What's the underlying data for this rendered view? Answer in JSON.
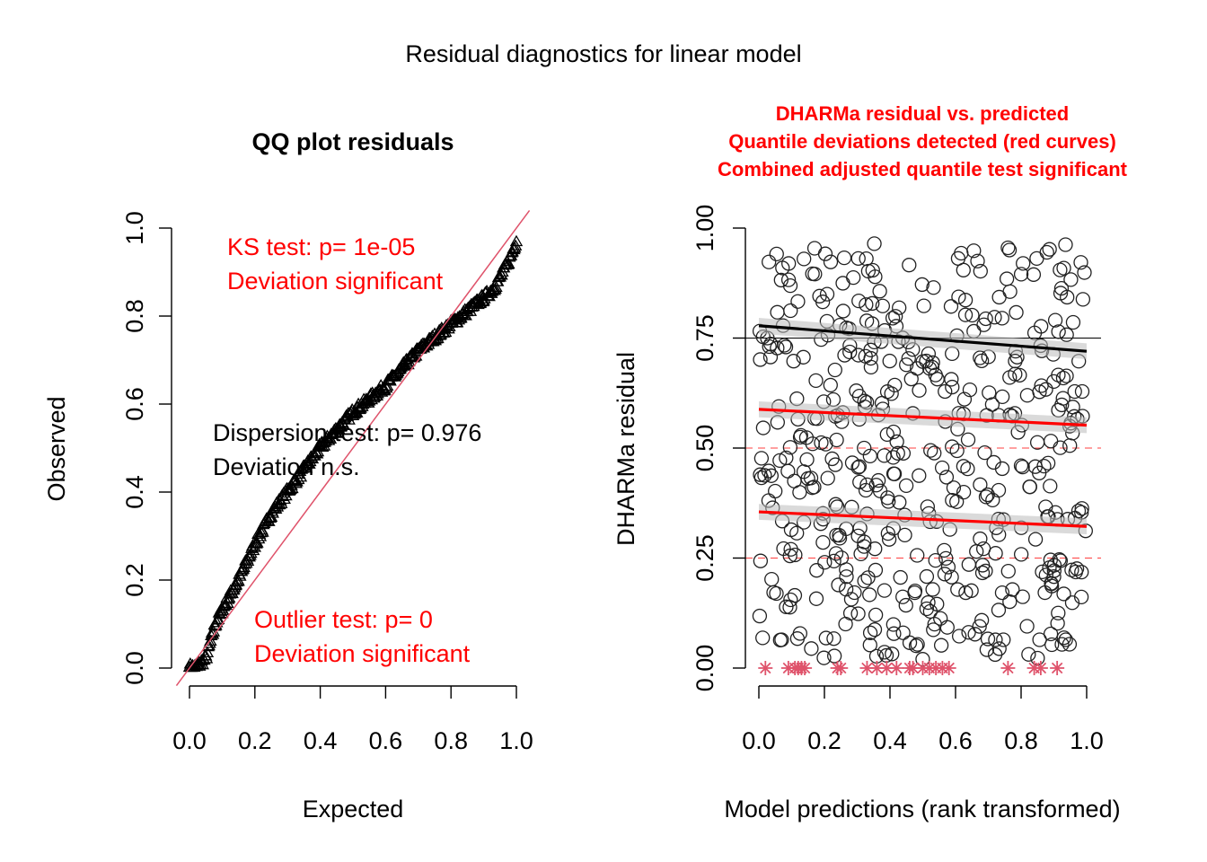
{
  "figure_title": "Residual diagnostics for linear model",
  "chart_data": [
    {
      "type": "scatter",
      "title": "QQ plot residuals",
      "xlabel": "Expected",
      "ylabel": "Observed",
      "xlim": [
        0,
        1
      ],
      "ylim": [
        0,
        1
      ],
      "x_ticks": [
        "0.0",
        "0.2",
        "0.4",
        "0.6",
        "0.8",
        "1.0"
      ],
      "y_ticks": [
        "0.0",
        "0.2",
        "0.4",
        "0.6",
        "0.8",
        "1.0"
      ],
      "reference_line": {
        "from": [
          0,
          0
        ],
        "to": [
          1,
          1
        ],
        "color": "#DF536B"
      },
      "observed_curve": {
        "x": [
          0.0,
          0.02,
          0.05,
          0.08,
          0.1,
          0.15,
          0.2,
          0.25,
          0.3,
          0.35,
          0.4,
          0.45,
          0.5,
          0.55,
          0.6,
          0.65,
          0.7,
          0.75,
          0.8,
          0.85,
          0.9,
          0.93,
          0.96,
          0.98,
          1.0
        ],
        "y": [
          0.0,
          0.0,
          0.02,
          0.1,
          0.13,
          0.2,
          0.28,
          0.35,
          0.4,
          0.45,
          0.5,
          0.54,
          0.58,
          0.61,
          0.64,
          0.68,
          0.72,
          0.75,
          0.78,
          0.81,
          0.84,
          0.86,
          0.9,
          0.93,
          0.97
        ]
      },
      "annotations": [
        {
          "lines": [
            "KS test: p= 1e-05",
            "Deviation  significant"
          ],
          "color": "#FF0000"
        },
        {
          "lines": [
            "Dispersion test: p= 0.976",
            "Deviation  n.s."
          ],
          "color": "#000000"
        },
        {
          "lines": [
            "Outlier test: p= 0",
            "Deviation  significant"
          ],
          "color": "#FF0000"
        }
      ]
    },
    {
      "type": "scatter",
      "title_lines": [
        "DHARMa residual vs. predicted",
        "Quantile deviations detected (red curves)",
        "Combined adjusted quantile test significant"
      ],
      "title_color": "#FF0000",
      "xlabel": "Model predictions (rank transformed)",
      "ylabel": "DHARMa residual",
      "xlim": [
        0,
        1
      ],
      "ylim": [
        0,
        1
      ],
      "x_ticks": [
        "0.0",
        "0.2",
        "0.4",
        "0.6",
        "0.8",
        "1.0"
      ],
      "y_ticks": [
        "0.00",
        "0.25",
        "0.50",
        "0.75",
        "1.00"
      ],
      "reference_quantiles": [
        0.25,
        0.5,
        0.75
      ],
      "quantile_fits": [
        {
          "quantile": 0.25,
          "y_start": 0.355,
          "y_end": 0.322,
          "color": "#FF0000"
        },
        {
          "quantile": 0.5,
          "y_start": 0.588,
          "y_end": 0.552,
          "color": "#FF0000"
        },
        {
          "quantile": 0.75,
          "y_start": 0.778,
          "y_end": 0.72,
          "color": "#000000"
        }
      ],
      "outlier_points": {
        "x": [
          0.02,
          0.09,
          0.11,
          0.12,
          0.13,
          0.14,
          0.24,
          0.25,
          0.33,
          0.36,
          0.39,
          0.42,
          0.46,
          0.47,
          0.5,
          0.52,
          0.54,
          0.56,
          0.58,
          0.76,
          0.84,
          0.86,
          0.91
        ],
        "y": 0,
        "marker": "asterisk",
        "color": "#DF536B"
      },
      "n_points": 500
    }
  ]
}
